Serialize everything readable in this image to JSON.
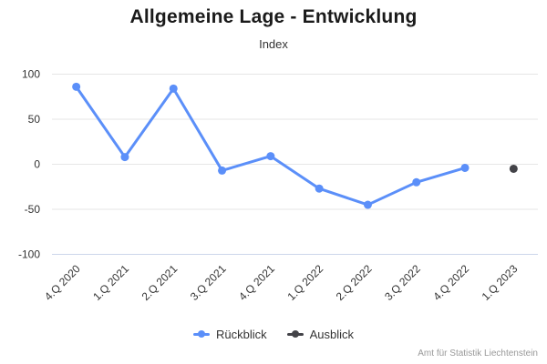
{
  "header": {
    "title": "Allgemeine Lage - Entwicklung",
    "subtitle": "Index"
  },
  "legend": [
    {
      "label": "Rückblick",
      "color": "#5b8ff9"
    },
    {
      "label": "Ausblick",
      "color": "#434348"
    }
  ],
  "credits": "Amt für Statistik Liechtenstein",
  "colors": {
    "gridline": "#e6e6e6",
    "axis_line": "#ccd6eb",
    "tick_label": "#333333",
    "credits_text": "#999999"
  },
  "chart_data": {
    "type": "line",
    "title": "Allgemeine Lage - Entwicklung",
    "subtitle": "Index",
    "categories": [
      "4.Q 2020",
      "1.Q 2021",
      "2.Q 2021",
      "3.Q 2021",
      "4.Q 2021",
      "1.Q 2022",
      "2.Q 2022",
      "3.Q 2022",
      "4.Q 2022",
      "1.Q 2023"
    ],
    "series": [
      {
        "name": "Rückblick",
        "color": "#5b8ff9",
        "values": [
          86,
          8,
          84,
          -7,
          9,
          -27,
          -45,
          -20,
          -4,
          null
        ]
      },
      {
        "name": "Ausblick",
        "color": "#434348",
        "values": [
          null,
          null,
          null,
          null,
          null,
          null,
          null,
          null,
          null,
          -5
        ]
      }
    ],
    "ylabel": "Index",
    "xlabel": "",
    "ylim": [
      -100,
      100
    ],
    "yticks": [
      100,
      50,
      0,
      -50,
      -100
    ],
    "grid": true,
    "legend_position": "bottom"
  }
}
